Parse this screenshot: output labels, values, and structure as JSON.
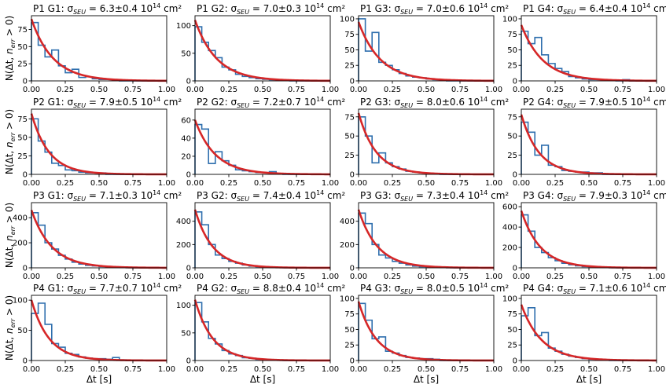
{
  "figure": {
    "ylabel": "N(Δt, n_err > 0)",
    "xlabel": "Δt [s]",
    "unit_suffix": "10¹⁴ cm²",
    "colors": {
      "hist": "#2f6fae",
      "fit": "#d62728"
    }
  },
  "chart_data": [
    {
      "type": "bar",
      "title": "P1 G1: σ_SEU = 6.3±0.4 10¹⁴ cm²",
      "title_parts": {
        "prefix": "P1 G1: σ",
        "sub": "SEU",
        "value": "= 6.3±0.4 10",
        "sup": "14",
        "unit": " cm²"
      },
      "xlim": [
        0,
        1
      ],
      "xticks": [
        "0.00",
        "0.25",
        "0.50",
        "0.75",
        "1.00"
      ],
      "ylim": [
        0,
        95
      ],
      "yticks": [
        0,
        25,
        50,
        75
      ],
      "bin_width": 0.05,
      "values": [
        85,
        52,
        35,
        45,
        22,
        12,
        17,
        5,
        6,
        3,
        2,
        2,
        1,
        0,
        0,
        0,
        0,
        0,
        0,
        0
      ],
      "fit": {
        "amplitude": 90,
        "decay_s": 0.16
      },
      "xlabel": "",
      "ylabel": "N(Δt, n_err > 0)"
    },
    {
      "type": "bar",
      "title": "P1 G2: σ_SEU = 7.0±0.3 10¹⁴ cm²",
      "title_parts": {
        "prefix": "P1 G2: σ",
        "sub": "SEU",
        "value": "= 7.0±0.3 10",
        "sup": "14",
        "unit": " cm²"
      },
      "xlim": [
        0,
        1
      ],
      "xticks": [
        "0.00",
        "0.25",
        "0.50",
        "0.75",
        "1.00"
      ],
      "ylim": [
        0,
        118
      ],
      "yticks": [
        0,
        50,
        100
      ],
      "bin_width": 0.05,
      "values": [
        98,
        70,
        55,
        42,
        25,
        20,
        12,
        8,
        6,
        4,
        3,
        2,
        1,
        1,
        0,
        0,
        0,
        0,
        0,
        0
      ],
      "fit": {
        "amplitude": 110,
        "decay_s": 0.16
      },
      "xlabel": "",
      "ylabel": ""
    },
    {
      "type": "bar",
      "title": "P1 G3: σ_SEU = 7.0±0.6 10¹⁴ cm²",
      "title_parts": {
        "prefix": "P1 G3: σ",
        "sub": "SEU",
        "value": "= 7.0±0.6 10",
        "sup": "14",
        "unit": " cm²"
      },
      "xlim": [
        0,
        1
      ],
      "xticks": [
        "0.00",
        "0.25",
        "0.50",
        "0.75",
        "1.00"
      ],
      "ylim": [
        0,
        105
      ],
      "yticks": [
        0,
        25,
        50,
        75,
        100
      ],
      "bin_width": 0.05,
      "values": [
        100,
        48,
        78,
        30,
        25,
        18,
        12,
        8,
        6,
        5,
        3,
        2,
        1,
        0,
        0,
        0,
        0,
        0,
        0,
        0
      ],
      "fit": {
        "amplitude": 95,
        "decay_s": 0.16
      },
      "xlabel": "",
      "ylabel": ""
    },
    {
      "type": "bar",
      "title": "P1 G4: σ_SEU = 6.4±0.4 10¹⁴ cm²",
      "title_parts": {
        "prefix": "P1 G4: σ",
        "sub": "SEU",
        "value": "= 6.4±0.4 10",
        "sup": "14",
        "unit": " cm²"
      },
      "xlim": [
        0,
        1
      ],
      "xticks": [
        "0.00",
        "0.25",
        "0.50",
        "0.75",
        "1.00"
      ],
      "ylim": [
        0,
        105
      ],
      "yticks": [
        0,
        25,
        50,
        75,
        100
      ],
      "bin_width": 0.05,
      "values": [
        80,
        60,
        70,
        42,
        28,
        20,
        15,
        7,
        5,
        3,
        2,
        2,
        2,
        1,
        0,
        2,
        0,
        0,
        0,
        0
      ],
      "fit": {
        "amplitude": 90,
        "decay_s": 0.16
      },
      "xlabel": "",
      "ylabel": ""
    },
    {
      "type": "bar",
      "title": "P2 G1: σ_SEU = 7.9±0.5 10¹⁴ cm²",
      "title_parts": {
        "prefix": "P2 G1: σ",
        "sub": "SEU",
        "value": "= 7.9±0.5 10",
        "sup": "14",
        "unit": " cm²"
      },
      "xlim": [
        0,
        1
      ],
      "xticks": [
        "0.00",
        "0.25",
        "0.50",
        "0.75",
        "1.00"
      ],
      "ylim": [
        0,
        88
      ],
      "yticks": [
        0,
        25,
        50,
        75
      ],
      "bin_width": 0.05,
      "values": [
        75,
        45,
        30,
        15,
        12,
        6,
        5,
        3,
        2,
        2,
        2,
        0,
        0,
        0,
        0,
        0,
        0,
        0,
        0,
        0
      ],
      "fit": {
        "amplitude": 82,
        "decay_s": 0.13
      },
      "xlabel": "",
      "ylabel": "N(Δt, n_err > 0)"
    },
    {
      "type": "bar",
      "title": "P2 G2: σ_SEU = 7.2±0.7 10¹⁴ cm²",
      "title_parts": {
        "prefix": "P2 G2: σ",
        "sub": "SEU",
        "value": "= 7.2±0.7 10",
        "sup": "14",
        "unit": " cm²"
      },
      "xlim": [
        0,
        1
      ],
      "xticks": [
        "0.00",
        "0.25",
        "0.50",
        "0.75",
        "1.00"
      ],
      "ylim": [
        0,
        72
      ],
      "yticks": [
        0,
        20,
        40,
        60
      ],
      "bin_width": 0.05,
      "values": [
        55,
        50,
        12,
        25,
        15,
        10,
        5,
        4,
        3,
        2,
        2,
        3,
        1,
        0,
        0,
        0,
        0,
        0,
        0,
        0
      ],
      "fit": {
        "amplitude": 60,
        "decay_s": 0.15
      },
      "xlabel": "",
      "ylabel": ""
    },
    {
      "type": "bar",
      "title": "P2 G3: σ_SEU = 8.0±0.6 10¹⁴ cm²",
      "title_parts": {
        "prefix": "P2 G3: σ",
        "sub": "SEU",
        "value": "= 8.0±0.6 10",
        "sup": "14",
        "unit": " cm²"
      },
      "xlim": [
        0,
        1
      ],
      "xticks": [
        "0.00",
        "0.25",
        "0.50",
        "0.75",
        "1.00"
      ],
      "ylim": [
        0,
        85
      ],
      "yticks": [
        0,
        25,
        50,
        75
      ],
      "bin_width": 0.05,
      "values": [
        75,
        50,
        15,
        28,
        15,
        10,
        7,
        4,
        3,
        2,
        1,
        1,
        0,
        0,
        0,
        0,
        0,
        0,
        0,
        0
      ],
      "fit": {
        "amplitude": 80,
        "decay_s": 0.13
      },
      "xlabel": "",
      "ylabel": ""
    },
    {
      "type": "bar",
      "title": "P2 G4: σ_SEU = 7.9±0.5 10¹⁴ cm²",
      "title_parts": {
        "prefix": "P2 G4: σ",
        "sub": "SEU",
        "value": "= 7.9±0.5 10",
        "sup": "14",
        "unit": " cm²"
      },
      "xlim": [
        0,
        1
      ],
      "xticks": [
        "0.00",
        "0.25",
        "0.50",
        "0.75",
        "1.00"
      ],
      "ylim": [
        0,
        85
      ],
      "yticks": [
        0,
        25,
        50,
        75
      ],
      "bin_width": 0.05,
      "values": [
        68,
        55,
        25,
        38,
        12,
        10,
        5,
        4,
        3,
        3,
        2,
        2,
        0,
        0,
        0,
        0,
        0,
        0,
        0,
        0
      ],
      "fit": {
        "amplitude": 78,
        "decay_s": 0.13
      },
      "xlabel": "",
      "ylabel": ""
    },
    {
      "type": "bar",
      "title": "P3 G1: σ_SEU = 7.1±0.3 10¹⁴ cm²",
      "title_parts": {
        "prefix": "P3 G1: σ",
        "sub": "SEU",
        "value": "= 7.1±0.3 10",
        "sup": "14",
        "unit": " cm²"
      },
      "xlim": [
        0,
        1
      ],
      "xticks": [
        "0.00",
        "0.25",
        "0.50",
        "0.75",
        "1.00"
      ],
      "ylim": [
        0,
        520
      ],
      "yticks": [
        0,
        200,
        400
      ],
      "bin_width": 0.05,
      "values": [
        440,
        340,
        200,
        150,
        100,
        70,
        45,
        30,
        20,
        15,
        10,
        6,
        4,
        2,
        1,
        0,
        0,
        0,
        0,
        0
      ],
      "fit": {
        "amplitude": 460,
        "decay_s": 0.15
      },
      "xlabel": "",
      "ylabel": "N(Δt, n_err > 0)"
    },
    {
      "type": "bar",
      "title": "P3 G2: σ_SEU = 7.4±0.4 10¹⁴ cm²",
      "title_parts": {
        "prefix": "P3 G2: σ",
        "sub": "SEU",
        "value": "= 7.4±0.4 10",
        "sup": "14",
        "unit": " cm²"
      },
      "xlim": [
        0,
        1
      ],
      "xticks": [
        "0.00",
        "0.25",
        "0.50",
        "0.75",
        "1.00"
      ],
      "ylim": [
        0,
        560
      ],
      "yticks": [
        0,
        200,
        400
      ],
      "bin_width": 0.05,
      "values": [
        480,
        370,
        200,
        110,
        80,
        55,
        40,
        25,
        15,
        10,
        7,
        4,
        2,
        1,
        0,
        0,
        0,
        0,
        0,
        0
      ],
      "fit": {
        "amplitude": 500,
        "decay_s": 0.13
      },
      "xlabel": "",
      "ylabel": ""
    },
    {
      "type": "bar",
      "title": "P3 G3: σ_SEU = 7.3±0.4 10¹⁴ cm²",
      "title_parts": {
        "prefix": "P3 G3: σ",
        "sub": "SEU",
        "value": "= 7.3±0.4 10",
        "sup": "14",
        "unit": " cm²"
      },
      "xlim": [
        0,
        1
      ],
      "xticks": [
        "0.00",
        "0.25",
        "0.50",
        "0.75",
        "1.00"
      ],
      "ylim": [
        0,
        560
      ],
      "yticks": [
        0,
        200,
        400
      ],
      "bin_width": 0.05,
      "values": [
        470,
        380,
        200,
        110,
        85,
        55,
        40,
        25,
        15,
        10,
        7,
        5,
        2,
        1,
        0,
        0,
        0,
        0,
        0,
        0
      ],
      "fit": {
        "amplitude": 500,
        "decay_s": 0.14
      },
      "xlabel": "",
      "ylabel": ""
    },
    {
      "type": "bar",
      "title": "P3 G4: σ_SEU = 7.9±0.3 10¹⁴ cm²",
      "title_parts": {
        "prefix": "P3 G4: σ",
        "sub": "SEU",
        "value": "= 7.9±0.3 10",
        "sup": "14",
        "unit": " cm²"
      },
      "xlim": [
        0,
        1
      ],
      "xticks": [
        "0.00",
        "0.25",
        "0.50",
        "0.75",
        "1.00"
      ],
      "ylim": [
        0,
        640
      ],
      "yticks": [
        0,
        200,
        400,
        600
      ],
      "bin_width": 0.05,
      "values": [
        520,
        360,
        200,
        150,
        100,
        70,
        45,
        30,
        20,
        12,
        8,
        5,
        3,
        1,
        0,
        0,
        0,
        0,
        0,
        0
      ],
      "fit": {
        "amplitude": 560,
        "decay_s": 0.14
      },
      "xlabel": "",
      "ylabel": ""
    },
    {
      "type": "bar",
      "title": "P4 G1: σ_SEU = 7.7±0.7 10¹⁴ cm²",
      "title_parts": {
        "prefix": "P4 G1: σ",
        "sub": "SEU",
        "value": "= 7.7±0.7 10",
        "sup": "14",
        "unit": " cm²"
      },
      "xlim": [
        0,
        1
      ],
      "xticks": [
        "0.00",
        "0.25",
        "0.50",
        "0.75",
        "1.00"
      ],
      "ylim": [
        0,
        108
      ],
      "yticks": [
        0,
        50,
        100
      ],
      "bin_width": 0.05,
      "values": [
        78,
        95,
        60,
        28,
        22,
        12,
        10,
        6,
        4,
        3,
        3,
        2,
        5,
        1,
        0,
        0,
        0,
        0,
        0,
        0
      ],
      "fit": {
        "amplitude": 100,
        "decay_s": 0.13
      },
      "xlabel": "Δt [s]",
      "ylabel": "N(Δt, n_err > 0)"
    },
    {
      "type": "bar",
      "title": "P4 G2: σ_SEU = 8.8±0.4 10¹⁴ cm²",
      "title_parts": {
        "prefix": "P4 G2: σ",
        "sub": "SEU",
        "value": "= 8.8±0.4 10",
        "sup": "14",
        "unit": " cm²"
      },
      "xlim": [
        0,
        1
      ],
      "xticks": [
        "0.00",
        "0.25",
        "0.50",
        "0.75",
        "1.00"
      ],
      "ylim": [
        0,
        118
      ],
      "yticks": [
        0,
        50,
        100
      ],
      "bin_width": 0.05,
      "values": [
        105,
        70,
        40,
        30,
        18,
        12,
        9,
        5,
        4,
        2,
        2,
        1,
        1,
        0,
        0,
        0,
        0,
        0,
        0,
        0
      ],
      "fit": {
        "amplitude": 110,
        "decay_s": 0.13
      },
      "xlabel": "Δt [s]",
      "ylabel": ""
    },
    {
      "type": "bar",
      "title": "P4 G3: σ_SEU = 8.0±0.5 10¹⁴ cm²",
      "title_parts": {
        "prefix": "P4 G3: σ",
        "sub": "SEU",
        "value": "= 8.0±0.5 10",
        "sup": "14",
        "unit": " cm²"
      },
      "xlim": [
        0,
        1
      ],
      "xticks": [
        "0.00",
        "0.25",
        "0.50",
        "0.75",
        "1.00"
      ],
      "ylim": [
        0,
        105
      ],
      "yticks": [
        0,
        25,
        50,
        75,
        100
      ],
      "bin_width": 0.05,
      "values": [
        92,
        65,
        35,
        38,
        15,
        12,
        8,
        5,
        4,
        3,
        3,
        2,
        0,
        0,
        0,
        0,
        0,
        0,
        0,
        0
      ],
      "fit": {
        "amplitude": 95,
        "decay_s": 0.13
      },
      "xlabel": "Δt [s]",
      "ylabel": ""
    },
    {
      "type": "bar",
      "title": "P4 G4: σ_SEU = 7.1±0.6 10¹⁴ cm²",
      "title_parts": {
        "prefix": "P4 G4: σ",
        "sub": "SEU",
        "value": "= 7.1±0.6 10",
        "sup": "14",
        "unit": " cm²"
      },
      "xlim": [
        0,
        1
      ],
      "xticks": [
        "0.00",
        "0.25",
        "0.50",
        "0.75",
        "1.00"
      ],
      "ylim": [
        0,
        105
      ],
      "yticks": [
        0,
        25,
        50,
        75,
        100
      ],
      "bin_width": 0.05,
      "values": [
        72,
        85,
        40,
        45,
        20,
        15,
        10,
        7,
        5,
        3,
        2,
        1,
        1,
        0,
        0,
        0,
        0,
        0,
        0,
        0
      ],
      "fit": {
        "amplitude": 90,
        "decay_s": 0.15
      },
      "xlabel": "Δt [s]",
      "ylabel": ""
    }
  ]
}
